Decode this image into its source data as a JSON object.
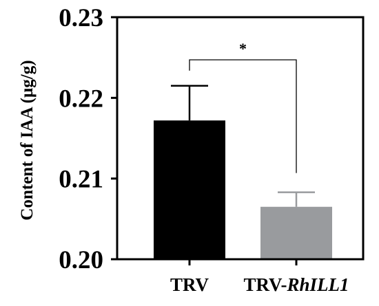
{
  "chart_data": {
    "type": "bar",
    "ylabel": "Content of IAA (µg/g)",
    "ylim": [
      0.2,
      0.23
    ],
    "yticks": [
      "0.20",
      "0.21",
      "0.22",
      "0.23"
    ],
    "categories": [
      {
        "base": "TRV",
        "italic": ""
      },
      {
        "base": "TRV-",
        "italic": "RhILL1"
      }
    ],
    "values": [
      0.2172,
      0.2065
    ],
    "errors": [
      0.0043,
      0.0018
    ],
    "colors": [
      "#000000",
      "#999b9e"
    ],
    "significance": "*"
  }
}
